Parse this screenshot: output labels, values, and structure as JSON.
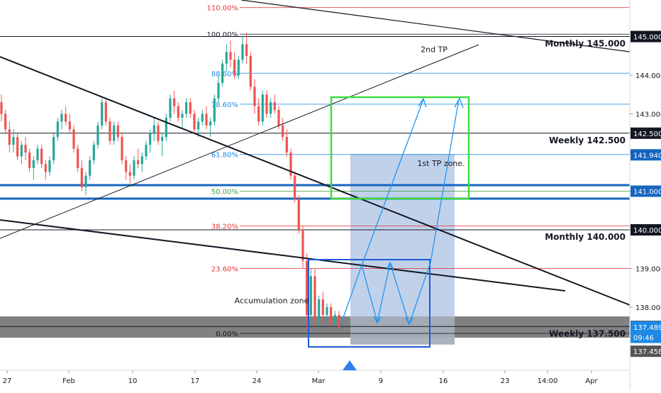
{
  "chart_data": {
    "type": "candlestick",
    "x_ticks": [
      "27",
      "Feb",
      "10",
      "17",
      "24",
      "Mar",
      "9",
      "16",
      "23",
      "14:00",
      "Apr"
    ],
    "y_ticks": [
      138.0,
      139.0,
      140.0,
      141.0,
      142.0,
      143.0,
      144.0,
      145.0
    ],
    "y_range": [
      137.2,
      145.9
    ],
    "fib_levels": [
      {
        "label": "110.00%",
        "price": 145.75,
        "color": "#e53935"
      },
      {
        "label": "100.00%",
        "price": 145.06,
        "color": "#131722"
      },
      {
        "label": "88.60%",
        "price": 144.05,
        "color": "#1e88e5"
      },
      {
        "label": "78.60%",
        "price": 143.25,
        "color": "#1e88e5"
      },
      {
        "label": "61.80%",
        "price": 141.95,
        "color": "#1e88e5"
      },
      {
        "label": "50.00%",
        "price": 141.0,
        "color": "#43a047"
      },
      {
        "label": "38.20%",
        "price": 140.1,
        "color": "#e53935"
      },
      {
        "label": "23.60%",
        "price": 139.0,
        "color": "#e53935"
      },
      {
        "label": "0.00%",
        "price": 137.32,
        "color": "#131722"
      }
    ],
    "level_lines": [
      {
        "label": "Monthly 145.000",
        "price": 145.0
      },
      {
        "label": "Weekly 142.500",
        "price": 142.5
      },
      {
        "label": "Monthly 140.000",
        "price": 140.0
      },
      {
        "label": "Weekly 137.500",
        "price": 137.5
      }
    ],
    "price_tags": [
      {
        "label": "145.000",
        "price": 145.0,
        "bg": "#131722"
      },
      {
        "label": "142.500",
        "price": 142.5,
        "bg": "#131722"
      },
      {
        "label": "141.940",
        "price": 141.94,
        "bg": "#1565c0"
      },
      {
        "label": "141.000",
        "price": 141.0,
        "bg": "#1565c0"
      },
      {
        "label": "140.000",
        "price": 140.0,
        "bg": "#131722"
      },
      {
        "label": "137.500",
        "price": 137.5,
        "bg": "#131722"
      },
      {
        "label": "137.489",
        "price": 137.489,
        "bg": "#1e88e5"
      },
      {
        "label": "09:46",
        "price": 137.22,
        "bg": "#1e88e5"
      },
      {
        "label": "137.458",
        "price": 136.86,
        "bg": "#555555"
      }
    ],
    "annotations": [
      {
        "text": "2nd TP",
        "price": 144.6
      },
      {
        "text": "1st TP zone.",
        "price": 141.65
      },
      {
        "text": "Accumulation zone",
        "price": 138.1
      }
    ],
    "colors": {
      "up": "#26a69a",
      "down": "#ef5350",
      "wick_up": "#26a69a",
      "wick_down": "#ef5350"
    },
    "candles": [
      [
        143.3,
        143.5,
        142.8,
        143.0
      ],
      [
        143.0,
        143.1,
        142.5,
        142.6
      ],
      [
        142.6,
        142.8,
        142.0,
        142.2
      ],
      [
        142.2,
        142.6,
        142.0,
        142.4
      ],
      [
        142.4,
        142.5,
        141.8,
        141.9
      ],
      [
        141.9,
        142.3,
        141.7,
        142.2
      ],
      [
        142.2,
        142.4,
        141.8,
        142.0
      ],
      [
        142.0,
        142.1,
        141.5,
        141.6
      ],
      [
        141.6,
        141.9,
        141.3,
        141.8
      ],
      [
        141.8,
        142.2,
        141.7,
        142.1
      ],
      [
        142.1,
        142.2,
        141.6,
        141.7
      ],
      [
        141.7,
        141.8,
        141.3,
        141.5
      ],
      [
        141.5,
        141.9,
        141.4,
        141.8
      ],
      [
        141.8,
        142.5,
        141.7,
        142.4
      ],
      [
        142.4,
        142.9,
        142.3,
        142.8
      ],
      [
        142.8,
        143.1,
        142.6,
        143.0
      ],
      [
        143.0,
        143.2,
        142.7,
        142.8
      ],
      [
        142.8,
        143.0,
        142.5,
        142.6
      ],
      [
        142.6,
        142.7,
        142.0,
        142.1
      ],
      [
        142.1,
        142.2,
        141.5,
        141.6
      ],
      [
        141.6,
        141.8,
        141.0,
        141.1
      ],
      [
        141.1,
        141.5,
        140.9,
        141.4
      ],
      [
        141.4,
        141.9,
        141.3,
        141.8
      ],
      [
        141.8,
        142.3,
        141.7,
        142.2
      ],
      [
        142.2,
        142.8,
        142.1,
        142.7
      ],
      [
        142.7,
        143.4,
        142.6,
        143.3
      ],
      [
        143.3,
        143.4,
        142.7,
        142.8
      ],
      [
        142.8,
        142.9,
        142.2,
        142.3
      ],
      [
        142.3,
        142.8,
        142.2,
        142.7
      ],
      [
        142.7,
        142.8,
        142.3,
        142.4
      ],
      [
        142.4,
        142.5,
        141.7,
        141.8
      ],
      [
        141.8,
        141.9,
        141.3,
        141.5
      ],
      [
        141.5,
        141.7,
        141.2,
        141.4
      ],
      [
        141.4,
        141.9,
        141.3,
        141.8
      ],
      [
        141.8,
        142.1,
        141.6,
        141.7
      ],
      [
        141.7,
        142.0,
        141.5,
        141.9
      ],
      [
        141.9,
        142.3,
        141.8,
        142.2
      ],
      [
        142.2,
        142.6,
        142.0,
        142.5
      ],
      [
        142.5,
        142.9,
        142.3,
        142.7
      ],
      [
        142.7,
        142.8,
        142.2,
        142.3
      ],
      [
        142.3,
        142.5,
        141.9,
        142.4
      ],
      [
        142.4,
        143.0,
        142.3,
        142.9
      ],
      [
        142.9,
        143.5,
        142.8,
        143.4
      ],
      [
        143.4,
        143.6,
        143.0,
        143.2
      ],
      [
        143.2,
        143.3,
        142.8,
        142.9
      ],
      [
        142.9,
        143.1,
        142.6,
        143.0
      ],
      [
        143.0,
        143.4,
        142.9,
        143.3
      ],
      [
        143.3,
        143.4,
        142.9,
        143.0
      ],
      [
        143.0,
        143.1,
        142.5,
        142.6
      ],
      [
        142.6,
        142.9,
        142.4,
        142.8
      ],
      [
        142.8,
        143.1,
        142.7,
        143.0
      ],
      [
        143.0,
        143.2,
        142.6,
        142.7
      ],
      [
        142.7,
        142.9,
        142.4,
        142.8
      ],
      [
        142.8,
        143.5,
        142.7,
        143.4
      ],
      [
        143.4,
        144.0,
        143.3,
        143.8
      ],
      [
        143.8,
        144.4,
        143.7,
        144.3
      ],
      [
        144.3,
        144.8,
        144.1,
        144.6
      ],
      [
        144.6,
        144.9,
        144.2,
        144.4
      ],
      [
        144.4,
        144.6,
        143.9,
        144.0
      ],
      [
        144.0,
        144.5,
        143.9,
        144.4
      ],
      [
        144.4,
        145.0,
        144.3,
        144.8
      ],
      [
        144.8,
        145.1,
        144.3,
        144.5
      ],
      [
        144.5,
        144.6,
        143.6,
        143.7
      ],
      [
        143.7,
        143.9,
        143.0,
        143.2
      ],
      [
        143.2,
        143.4,
        142.7,
        142.8
      ],
      [
        142.8,
        143.6,
        142.7,
        143.5
      ],
      [
        143.5,
        143.6,
        142.9,
        143.0
      ],
      [
        143.0,
        143.4,
        142.9,
        143.3
      ],
      [
        143.3,
        143.5,
        143.0,
        143.1
      ],
      [
        143.1,
        143.2,
        142.6,
        142.7
      ],
      [
        142.7,
        142.9,
        142.3,
        142.4
      ],
      [
        142.4,
        142.6,
        141.9,
        142.0
      ],
      [
        142.0,
        142.1,
        141.3,
        141.4
      ],
      [
        141.4,
        141.5,
        140.7,
        140.8
      ],
      [
        140.8,
        140.9,
        139.9,
        140.0
      ],
      [
        140.0,
        140.1,
        139.0,
        139.2
      ],
      [
        139.2,
        139.4,
        137.4,
        137.8
      ],
      [
        137.8,
        139.0,
        137.6,
        138.8
      ],
      [
        138.8,
        139.0,
        137.5,
        137.7
      ],
      [
        137.7,
        138.3,
        137.5,
        138.2
      ],
      [
        138.2,
        138.4,
        137.6,
        137.8
      ],
      [
        137.8,
        138.1,
        137.6,
        138.0
      ],
      [
        138.0,
        138.1,
        137.5,
        137.6
      ],
      [
        137.6,
        137.9,
        137.5,
        137.8
      ],
      [
        137.8,
        137.9,
        137.45,
        137.49
      ]
    ]
  }
}
